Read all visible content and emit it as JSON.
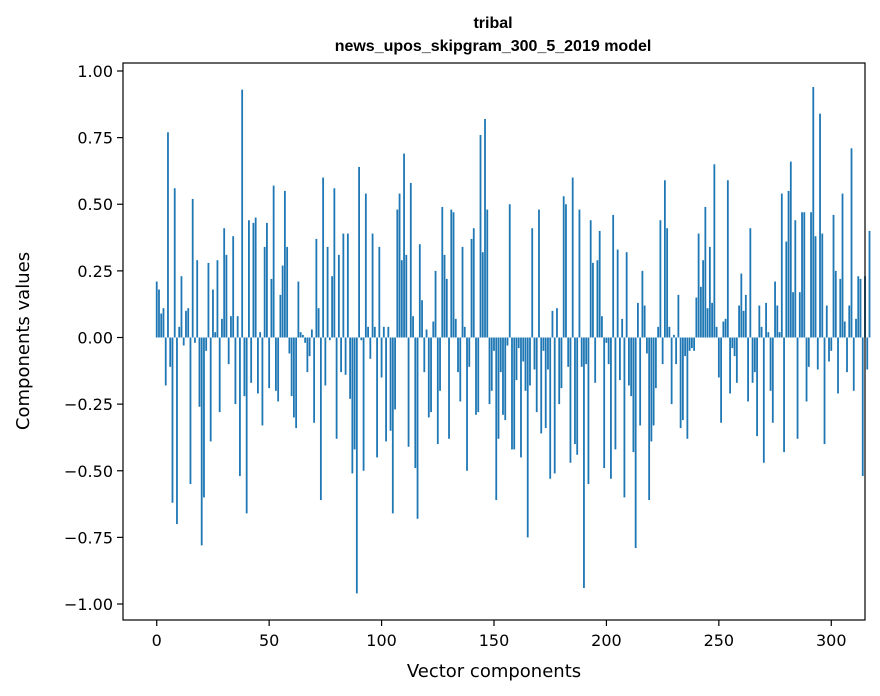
{
  "chart_data": {
    "type": "bar",
    "title": "tribal",
    "subtitle": "news_upos_skipgram_300_5_2019 model",
    "xlabel": "Vector components",
    "ylabel": "Components values",
    "xlim": [
      -15,
      315
    ],
    "ylim": [
      -1.06,
      1.03
    ],
    "xticks": [
      0,
      50,
      100,
      150,
      200,
      250,
      300
    ],
    "yticks": [
      -1.0,
      -0.75,
      -0.5,
      -0.25,
      0.0,
      0.25,
      0.5,
      0.75,
      1.0
    ],
    "ytick_labels": [
      "−1.00",
      "−0.75",
      "−0.50",
      "−0.25",
      "0.00",
      "0.25",
      "0.50",
      "0.75",
      "1.00"
    ],
    "xtick_labels": [
      "0",
      "50",
      "100",
      "150",
      "200",
      "250",
      "300"
    ],
    "bar_color": "#1f77b4",
    "grid": false,
    "values": [
      0.21,
      0.18,
      0.09,
      0.11,
      -0.18,
      0.77,
      -0.11,
      -0.62,
      0.56,
      -0.7,
      0.04,
      0.23,
      -0.03,
      0.1,
      0.11,
      -0.55,
      0.52,
      -0.02,
      0.29,
      -0.26,
      -0.78,
      -0.6,
      -0.05,
      0.28,
      -0.39,
      0.18,
      0.02,
      0.29,
      -0.28,
      0.07,
      0.41,
      0.31,
      -0.1,
      0.08,
      0.38,
      -0.25,
      0.08,
      -0.52,
      0.93,
      -0.22,
      -0.66,
      0.44,
      -0.17,
      0.43,
      0.45,
      -0.21,
      0.02,
      -0.33,
      0.34,
      0.43,
      -0.19,
      0.22,
      0.57,
      -0.2,
      -0.24,
      0.16,
      0.27,
      0.55,
      0.34,
      -0.06,
      -0.22,
      -0.3,
      -0.34,
      0.21,
      0.02,
      0.01,
      -0.02,
      -0.13,
      -0.07,
      0.03,
      -0.32,
      0.37,
      0.11,
      -0.61,
      0.6,
      -0.18,
      0.34,
      -0.01,
      0.23,
      0.56,
      -0.38,
      0.31,
      -0.13,
      0.39,
      -0.14,
      0.39,
      -0.23,
      -0.51,
      -0.42,
      -0.96,
      0.64,
      -0.01,
      -0.5,
      0.54,
      0.04,
      -0.08,
      0.39,
      0.04,
      -0.45,
      0.34,
      -0.15,
      0.04,
      -0.39,
      0.04,
      -0.35,
      -0.66,
      -0.27,
      0.48,
      0.54,
      0.29,
      0.69,
      0.31,
      -0.41,
      0.58,
      0.08,
      -0.49,
      -0.68,
      0.35,
      0.14,
      -0.13,
      0.03,
      -0.3,
      -0.28,
      0.06,
      0.25,
      -0.4,
      -0.2,
      0.49,
      0.31,
      0.22,
      -0.38,
      0.48,
      0.47,
      0.07,
      -0.13,
      -0.24,
      0.34,
      0.04,
      -0.5,
      -0.11,
      0.37,
      0.41,
      -0.29,
      -0.28,
      0.76,
      0.32,
      0.82,
      0.48,
      -0.25,
      -0.2,
      -0.05,
      -0.61,
      -0.38,
      -0.13,
      -0.29,
      -0.31,
      -0.03,
      0.5,
      -0.42,
      -0.42,
      -0.16,
      -0.04,
      -0.45,
      -0.09,
      -0.2,
      -0.75,
      -0.18,
      0.41,
      -0.12,
      -0.28,
      0.48,
      -0.36,
      -0.05,
      -0.34,
      -0.12,
      -0.53,
      0.1,
      -0.51,
      0.11,
      -0.25,
      -0.19,
      0.53,
      0.5,
      -0.11,
      -0.47,
      0.6,
      -0.4,
      -0.44,
      0.48,
      -0.11,
      -0.94,
      -0.1,
      -0.55,
      0.44,
      0.28,
      -0.17,
      0.29,
      0.4,
      0.08,
      -0.49,
      -0.02,
      -0.1,
      -0.53,
      0.46,
      -0.42,
      0.33,
      -0.16,
      0.07,
      -0.6,
      0.32,
      -0.18,
      -0.22,
      -0.43,
      -0.79,
      0.13,
      -0.33,
      0.25,
      0.12,
      -0.06,
      -0.61,
      -0.39,
      -0.33,
      -0.19,
      0.04,
      0.44,
      -0.1,
      0.59,
      0.41,
      0.04,
      -0.25,
      0.01,
      -0.1,
      0.16,
      -0.34,
      -0.31,
      -0.07,
      -0.38,
      -0.05,
      -0.04,
      -0.05,
      0.15,
      0.39,
      0.19,
      0.29,
      0.49,
      0.11,
      0.34,
      0.13,
      0.65,
      0.04,
      -0.15,
      -0.32,
      0.06,
      0.07,
      0.59,
      -0.21,
      -0.04,
      -0.07,
      -0.17,
      0.12,
      0.24,
      0.1,
      0.16,
      -0.24,
      0.41,
      -0.17,
      -0.13,
      -0.37,
      0.12,
      0.04,
      -0.47,
      0.13,
      0.02,
      -0.2,
      -0.32,
      0.21,
      0.12,
      0.02,
      0.54,
      -0.43,
      0.36,
      0.55,
      0.66,
      0.17,
      0.44,
      -0.38,
      0.17,
      0.47,
      0.47,
      -0.24,
      -0.11,
      0.47,
      0.94,
      0.38,
      -0.12,
      0.84,
      0.39,
      -0.4,
      0.12,
      -0.09,
      -0.05,
      0.46,
      0.25,
      -0.21,
      0.22,
      0.54,
      0.06,
      -0.13,
      0.12,
      0.71,
      -0.2,
      0.07,
      0.23,
      0.22,
      -0.52,
      0.23,
      -0.12,
      0.4
    ]
  }
}
